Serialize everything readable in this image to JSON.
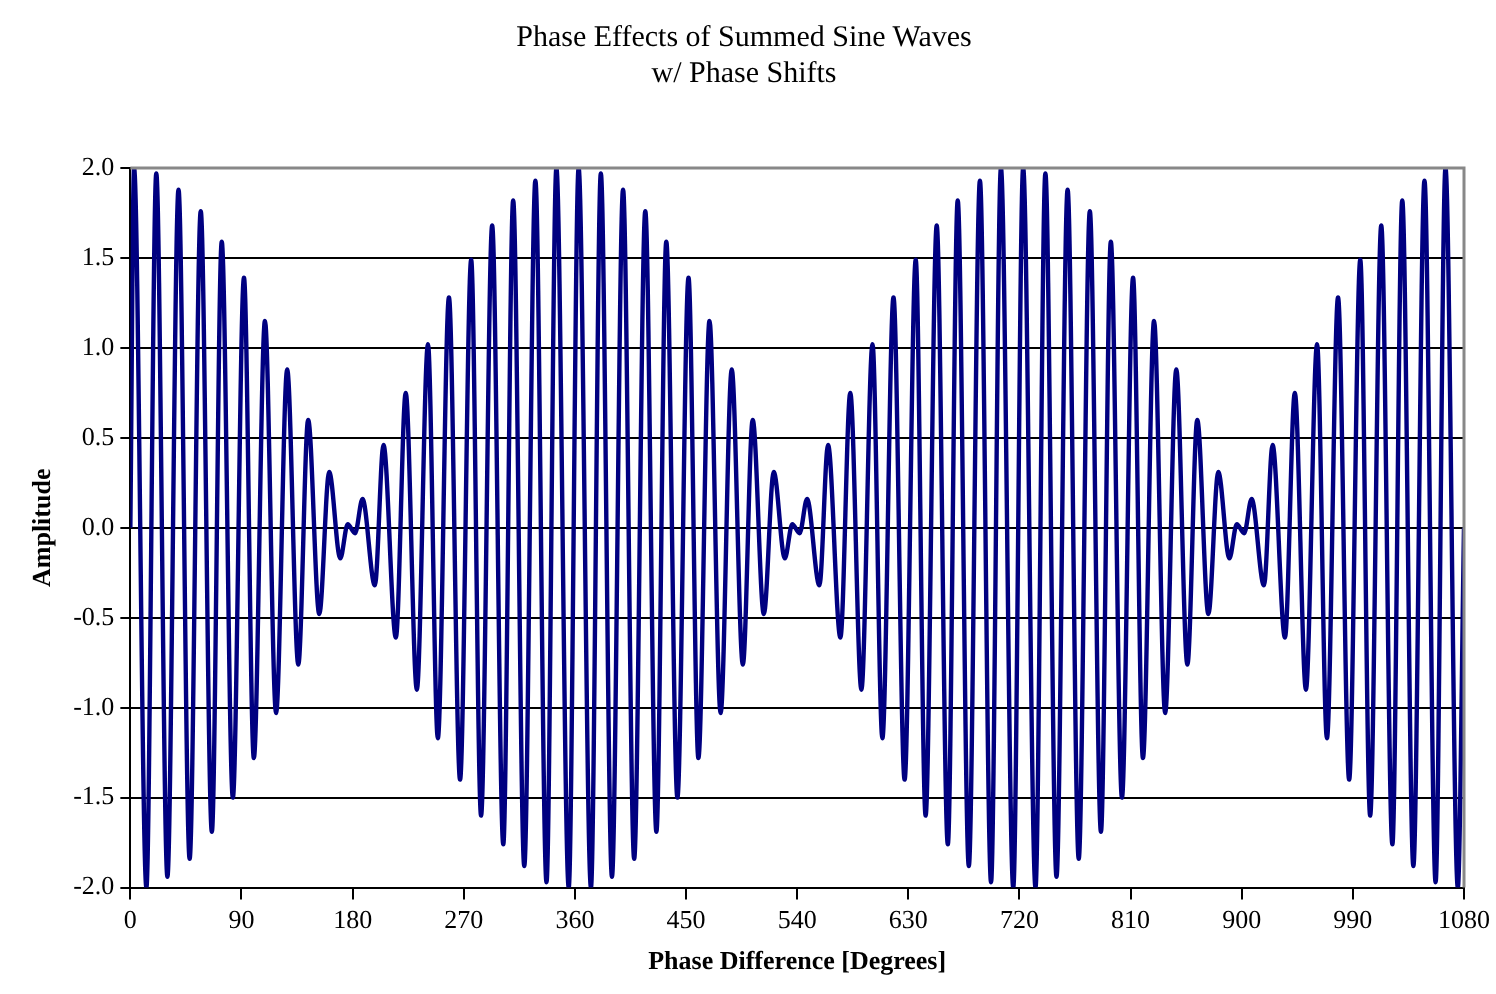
{
  "chart_data": {
    "type": "line",
    "title": "Phase Effects of Summed Sine Waves",
    "subtitle": "w/ Phase Shifts",
    "xlabel": "Phase Difference [Degrees]",
    "ylabel": "Amplitude",
    "x": [
      0,
      3,
      13,
      21,
      30,
      39,
      48,
      57,
      66,
      74,
      83,
      92,
      100,
      109,
      118,
      127,
      136,
      144,
      153,
      161,
      170,
      176,
      182,
      188,
      198,
      205,
      215,
      223,
      232,
      241,
      249,
      258,
      267,
      276,
      284,
      293,
      302,
      310,
      319,
      328,
      337,
      345,
      355,
      363,
      373,
      381,
      390,
      399,
      408,
      417,
      426,
      434,
      443,
      452,
      460,
      469,
      478,
      487,
      496,
      504,
      513,
      521,
      530,
      536,
      542,
      548,
      558,
      565,
      575,
      583,
      592,
      601,
      609,
      618,
      627,
      636,
      644,
      653,
      662,
      670,
      679,
      688,
      697,
      705,
      715,
      723,
      733,
      741,
      750,
      759,
      768,
      777,
      786,
      794,
      803,
      812,
      820,
      829,
      838,
      847,
      856,
      864,
      873,
      881,
      890,
      896,
      902,
      908,
      918,
      925,
      935,
      943,
      952,
      961,
      969,
      978,
      987,
      996,
      1004,
      1013,
      1022,
      1030,
      1039,
      1048,
      1057,
      1065,
      1075,
      1080
    ],
    "series": [
      {
        "color": "#000080",
        "values": [
          0,
          2.0,
          -2.0,
          1.97,
          -1.94,
          1.88,
          -1.84,
          1.76,
          -1.69,
          1.59,
          -1.5,
          1.39,
          -1.28,
          1.15,
          -1.03,
          0.88,
          -0.76,
          0.6,
          -0.48,
          0.31,
          -0.17,
          0.02,
          -0.03,
          0.16,
          -0.32,
          0.46,
          -0.61,
          0.75,
          -0.9,
          1.02,
          -1.17,
          1.28,
          -1.4,
          1.49,
          -1.6,
          1.68,
          -1.76,
          1.82,
          -1.88,
          1.93,
          -1.97,
          2.0,
          -2.0,
          2.0,
          -2.0,
          1.97,
          -1.94,
          1.88,
          -1.84,
          1.76,
          -1.69,
          1.59,
          -1.5,
          1.39,
          -1.28,
          1.15,
          -1.03,
          0.88,
          -0.76,
          0.6,
          -0.48,
          0.31,
          -0.17,
          0.02,
          -0.03,
          0.16,
          -0.32,
          0.46,
          -0.61,
          0.75,
          -0.9,
          1.02,
          -1.17,
          1.28,
          -1.4,
          1.49,
          -1.6,
          1.68,
          -1.76,
          1.82,
          -1.88,
          1.93,
          -1.97,
          2.0,
          -2.0,
          2.0,
          -2.0,
          1.97,
          -1.94,
          1.88,
          -1.84,
          1.76,
          -1.69,
          1.59,
          -1.5,
          1.39,
          -1.28,
          1.15,
          -1.03,
          0.88,
          -0.76,
          0.6,
          -0.48,
          0.31,
          -0.17,
          0.02,
          -0.03,
          0.16,
          -0.32,
          0.46,
          -0.61,
          0.75,
          -0.9,
          1.02,
          -1.17,
          1.28,
          -1.4,
          1.49,
          -1.6,
          1.68,
          -1.76,
          1.82,
          -1.88,
          1.93,
          -1.97,
          2.0,
          -2.0,
          0
        ]
      }
    ],
    "xlim": [
      0,
      1080
    ],
    "xticks": [
      0,
      90,
      180,
      270,
      360,
      450,
      540,
      630,
      720,
      810,
      900,
      990,
      1080
    ],
    "ylim": [
      -2,
      2
    ],
    "yticks": [
      {
        "value": -2,
        "label": "-2.0"
      },
      {
        "value": -1.5,
        "label": "-1.5"
      },
      {
        "value": -1,
        "label": "-1.0"
      },
      {
        "value": -0.5,
        "label": "-0.5"
      },
      {
        "value": 0,
        "label": "0.0"
      },
      {
        "value": 0.5,
        "label": "0.5"
      },
      {
        "value": 1,
        "label": "1.0"
      },
      {
        "value": 1.5,
        "label": "1.5"
      },
      {
        "value": 2,
        "label": "2.0"
      }
    ],
    "grid": "y",
    "legend": false,
    "marker": "none",
    "line_style": "solid"
  }
}
